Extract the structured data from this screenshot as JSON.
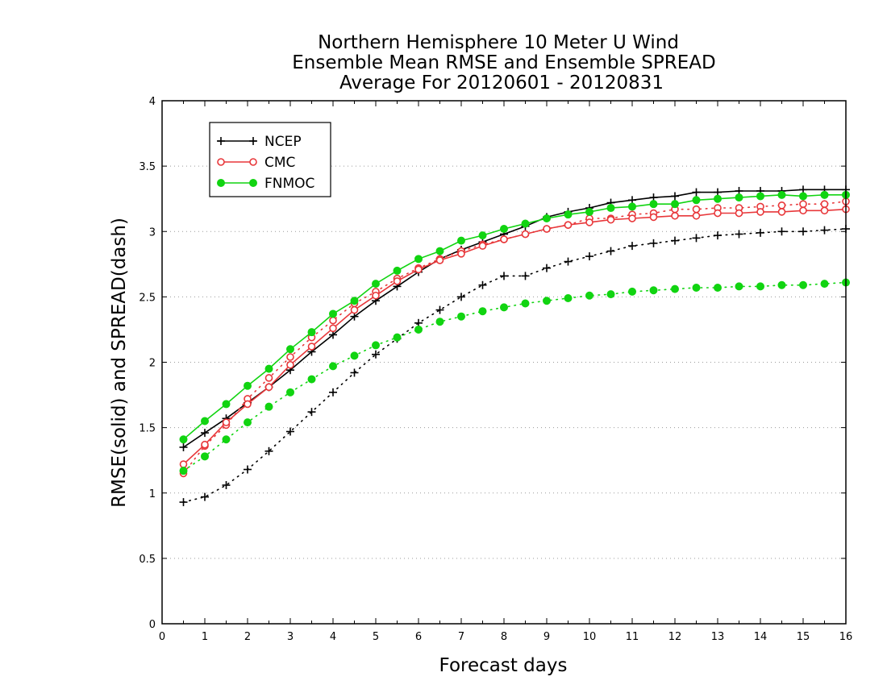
{
  "chart_data": {
    "type": "line",
    "title": [
      "Northern Hemisphere 10 Meter U Wind",
      "Ensemble Mean RMSE and Ensemble SPREAD",
      "Average For 20120601 - 20120831"
    ],
    "xlabel": "Forecast days",
    "ylabel": "RMSE(solid) and SPREAD(dash)",
    "xlim": [
      0,
      16
    ],
    "ylim": [
      0,
      4
    ],
    "xticks": [
      "0",
      "1",
      "2",
      "3",
      "4",
      "5",
      "6",
      "7",
      "8",
      "9",
      "10",
      "11",
      "12",
      "13",
      "14",
      "15",
      "16"
    ],
    "yticks": [
      "0",
      "0.5",
      "1",
      "1.5",
      "2",
      "2.5",
      "3",
      "3.5",
      "4"
    ],
    "grid": "horizontal dotted",
    "legend_position": "top-left",
    "x": [
      0.5,
      1,
      1.5,
      2,
      2.5,
      3,
      3.5,
      4,
      4.5,
      5,
      5.5,
      6,
      6.5,
      7,
      7.5,
      8,
      8.5,
      9,
      9.5,
      10,
      10.5,
      11,
      11.5,
      12,
      12.5,
      13,
      13.5,
      14,
      14.5,
      15,
      15.5,
      16
    ],
    "series": [
      {
        "name": "NCEP",
        "color": "#000000",
        "marker": "plus",
        "rmse": [
          1.35,
          1.46,
          1.57,
          1.69,
          1.81,
          1.94,
          2.08,
          2.21,
          2.35,
          2.47,
          2.58,
          2.69,
          2.79,
          2.86,
          2.92,
          2.98,
          3.04,
          3.11,
          3.15,
          3.18,
          3.22,
          3.24,
          3.26,
          3.27,
          3.3,
          3.3,
          3.31,
          3.31,
          3.31,
          3.32,
          3.32,
          3.32
        ],
        "spread": [
          0.93,
          0.97,
          1.06,
          1.18,
          1.32,
          1.47,
          1.62,
          1.77,
          1.92,
          2.06,
          2.18,
          2.3,
          2.4,
          2.5,
          2.59,
          2.66,
          2.66,
          2.72,
          2.77,
          2.81,
          2.85,
          2.89,
          2.91,
          2.93,
          2.95,
          2.97,
          2.98,
          2.99,
          3.0,
          3.0,
          3.01,
          3.02
        ]
      },
      {
        "name": "CMC",
        "color": "#e8373a",
        "marker": "open-circle",
        "rmse": [
          1.22,
          1.37,
          1.54,
          1.68,
          1.81,
          1.98,
          2.12,
          2.26,
          2.4,
          2.51,
          2.62,
          2.71,
          2.78,
          2.83,
          2.89,
          2.94,
          2.98,
          3.02,
          3.05,
          3.07,
          3.09,
          3.1,
          3.11,
          3.12,
          3.12,
          3.14,
          3.14,
          3.15,
          3.15,
          3.16,
          3.16,
          3.17
        ],
        "spread": [
          1.15,
          1.36,
          1.52,
          1.72,
          1.88,
          2.04,
          2.19,
          2.32,
          2.45,
          2.54,
          2.64,
          2.72,
          2.79,
          2.85,
          2.9,
          2.94,
          2.98,
          3.02,
          3.05,
          3.1,
          3.1,
          3.13,
          3.14,
          3.17,
          3.17,
          3.18,
          3.18,
          3.19,
          3.2,
          3.21,
          3.21,
          3.23
        ]
      },
      {
        "name": "FNMOC",
        "color": "#11d411",
        "marker": "filled-circle",
        "rmse": [
          1.41,
          1.55,
          1.68,
          1.82,
          1.95,
          2.1,
          2.23,
          2.37,
          2.47,
          2.6,
          2.7,
          2.79,
          2.85,
          2.93,
          2.97,
          3.02,
          3.06,
          3.1,
          3.13,
          3.15,
          3.18,
          3.19,
          3.21,
          3.21,
          3.24,
          3.25,
          3.26,
          3.27,
          3.28,
          3.27,
          3.28,
          3.28
        ],
        "spread": [
          1.17,
          1.28,
          1.41,
          1.54,
          1.66,
          1.77,
          1.87,
          1.97,
          2.05,
          2.13,
          2.19,
          2.25,
          2.31,
          2.35,
          2.39,
          2.42,
          2.45,
          2.47,
          2.49,
          2.51,
          2.52,
          2.54,
          2.55,
          2.56,
          2.57,
          2.57,
          2.58,
          2.58,
          2.59,
          2.59,
          2.6,
          2.61
        ]
      }
    ]
  }
}
